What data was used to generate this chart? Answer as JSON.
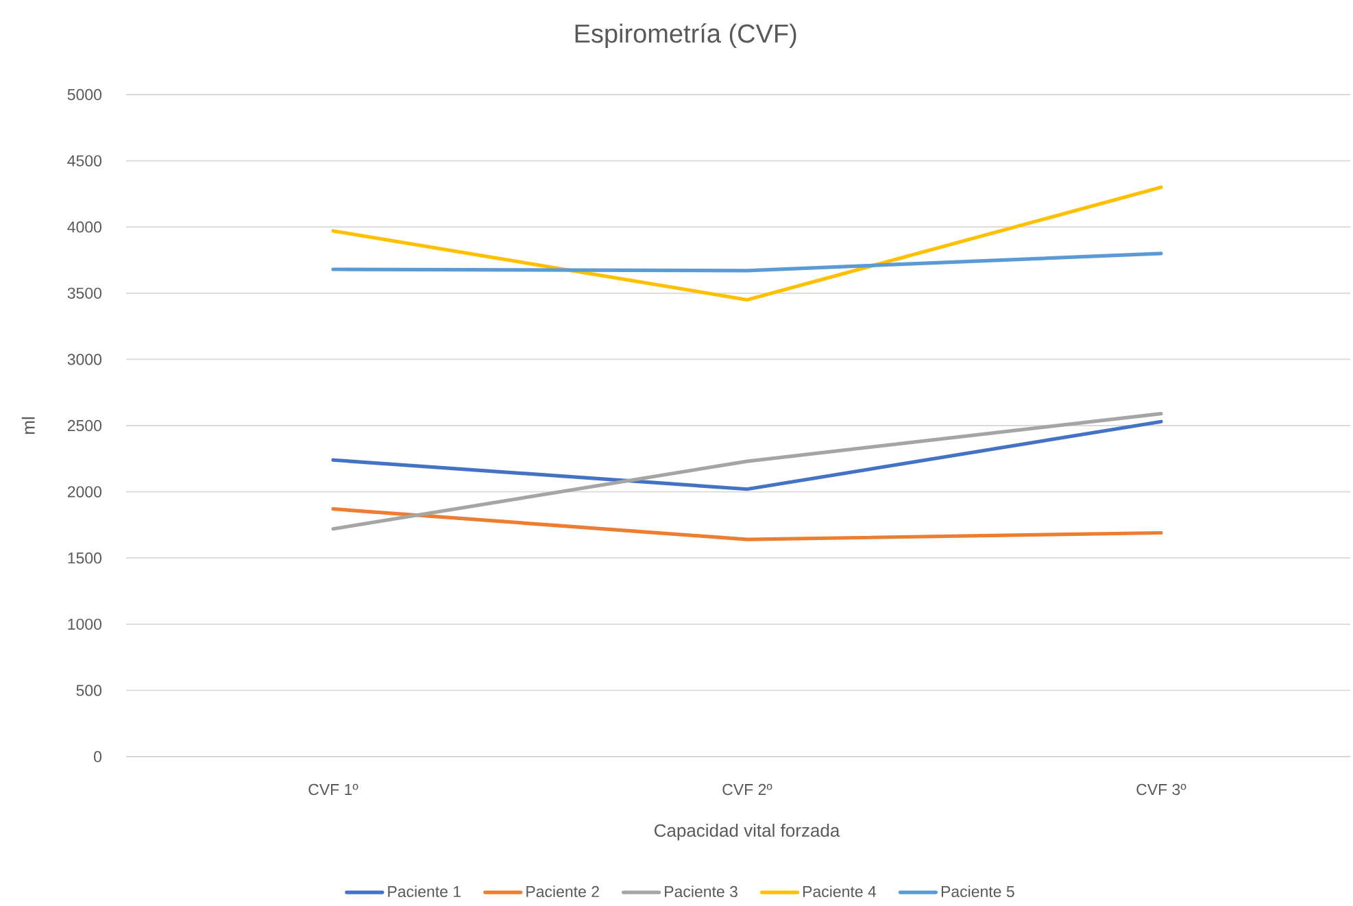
{
  "chart_data": {
    "type": "line",
    "title": "Espirometría (CVF)",
    "xlabel": "Capacidad vital forzada",
    "ylabel": "ml",
    "categories": [
      "CVF 1º",
      "CVF 2º",
      "CVF 3º"
    ],
    "series": [
      {
        "name": "Paciente 1",
        "color": "#4472c4",
        "values": [
          2240,
          2020,
          2530
        ]
      },
      {
        "name": "Paciente 2",
        "color": "#ed7d31",
        "values": [
          1870,
          1640,
          1690
        ]
      },
      {
        "name": "Paciente 3",
        "color": "#a5a5a5",
        "values": [
          1720,
          2230,
          2590
        ]
      },
      {
        "name": "Paciente 4",
        "color": "#ffc000",
        "values": [
          3970,
          3450,
          4300
        ]
      },
      {
        "name": "Paciente 5",
        "color": "#5b9bd5",
        "values": [
          3680,
          3670,
          3800
        ]
      }
    ],
    "ylim": [
      0,
      5000
    ],
    "yticks": [
      0,
      500,
      1000,
      1500,
      2000,
      2500,
      3000,
      3500,
      4000,
      4500,
      5000
    ],
    "grid": "y",
    "legend": "bottom",
    "marker": "none",
    "line_style": "solid"
  }
}
